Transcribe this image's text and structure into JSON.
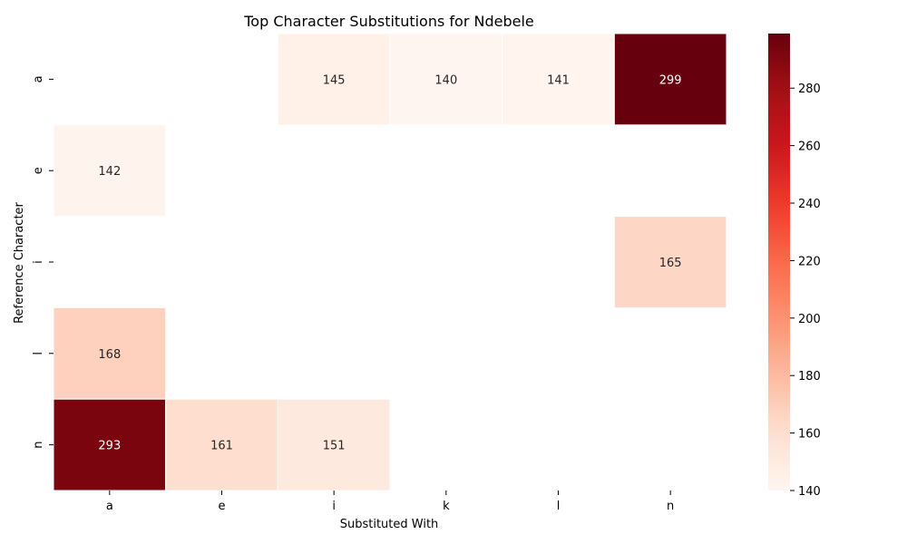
{
  "chart_data": {
    "type": "heatmap",
    "title": "Top Character Substitutions for Ndebele",
    "xlabel": "Substituted With",
    "ylabel": "Reference Character",
    "x_categories": [
      "a",
      "e",
      "i",
      "k",
      "l",
      "n"
    ],
    "y_categories": [
      "a",
      "e",
      "i",
      "l",
      "n"
    ],
    "values": [
      [
        null,
        null,
        145,
        140,
        141,
        299
      ],
      [
        142,
        null,
        null,
        null,
        null,
        null
      ],
      [
        null,
        null,
        null,
        null,
        null,
        165
      ],
      [
        168,
        null,
        null,
        null,
        null,
        null
      ],
      [
        293,
        161,
        151,
        null,
        null,
        null
      ]
    ],
    "colorbar": {
      "min": 140,
      "max": 299,
      "ticks": [
        140,
        160,
        180,
        200,
        220,
        240,
        260,
        280
      ],
      "colormap": "Reds"
    },
    "grid": false,
    "colors": {
      "cell_border": "#ffffff"
    }
  }
}
